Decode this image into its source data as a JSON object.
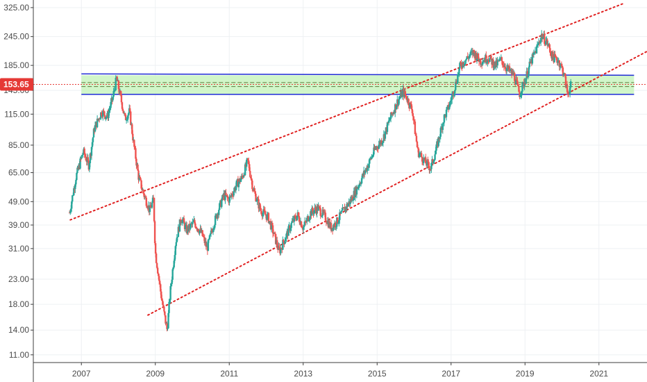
{
  "chart_data": {
    "type": "candlestick",
    "scale": "log",
    "ylim": [
      10.2,
      350
    ],
    "xlim": [
      2005.7,
      2022.3
    ],
    "y_ticks": [
      "325.00",
      "245.00",
      "185.00",
      "145.00",
      "115.00",
      "85.00",
      "65.00",
      "49.00",
      "39.00",
      "31.00",
      "23.00",
      "18.00",
      "14.00",
      "11.00"
    ],
    "x_ticks": [
      "2007",
      "2009",
      "2011",
      "2013",
      "2015",
      "2017",
      "2019",
      "2021"
    ],
    "current_price": {
      "label": "153.65",
      "value": 153.65,
      "color": "#e53935"
    },
    "colors": {
      "up": "#26a69a",
      "down": "#ef5350",
      "grid": "#eef0f3",
      "axis": "#3c3c3c",
      "zone_fill": "#c9f5c0",
      "zone_edge": "#1f2bd6",
      "trend": "#e02020"
    },
    "zone": {
      "low": 139.5,
      "high": 168
    },
    "zone_mid_lines": [
      150.5,
      156.5
    ],
    "trendlines": [
      {
        "name": "upper-channel",
        "points": [
          [
            2006.7,
            41
          ],
          [
            2021.7,
            340
          ]
        ]
      },
      {
        "name": "lower-channel",
        "points": [
          [
            2008.8,
            16.2
          ],
          [
            2022.3,
            212
          ]
        ]
      }
    ],
    "price_path": [
      [
        2006.68,
        44
      ],
      [
        2006.85,
        62
      ],
      [
        2007.05,
        80
      ],
      [
        2007.2,
        70
      ],
      [
        2007.35,
        100
      ],
      [
        2007.55,
        118
      ],
      [
        2007.7,
        112
      ],
      [
        2007.85,
        135
      ],
      [
        2007.95,
        163
      ],
      [
        2008.05,
        138
      ],
      [
        2008.18,
        110
      ],
      [
        2008.3,
        118
      ],
      [
        2008.42,
        85
      ],
      [
        2008.55,
        62
      ],
      [
        2008.7,
        52
      ],
      [
        2008.85,
        45
      ],
      [
        2008.95,
        50
      ],
      [
        2009.0,
        30
      ],
      [
        2009.15,
        20
      ],
      [
        2009.25,
        16
      ],
      [
        2009.32,
        14
      ],
      [
        2009.4,
        20
      ],
      [
        2009.55,
        33
      ],
      [
        2009.7,
        42
      ],
      [
        2009.85,
        37
      ],
      [
        2010.05,
        40
      ],
      [
        2010.25,
        36
      ],
      [
        2010.4,
        31
      ],
      [
        2010.55,
        38
      ],
      [
        2010.7,
        45
      ],
      [
        2010.85,
        52
      ],
      [
        2011.0,
        50
      ],
      [
        2011.2,
        58
      ],
      [
        2011.35,
        62
      ],
      [
        2011.5,
        73
      ],
      [
        2011.65,
        55
      ],
      [
        2011.85,
        45
      ],
      [
        2012.05,
        42
      ],
      [
        2012.2,
        36
      ],
      [
        2012.35,
        30
      ],
      [
        2012.5,
        34
      ],
      [
        2012.7,
        40
      ],
      [
        2012.85,
        43
      ],
      [
        2013.0,
        38
      ],
      [
        2013.2,
        44
      ],
      [
        2013.4,
        46
      ],
      [
        2013.6,
        42
      ],
      [
        2013.75,
        38
      ],
      [
        2013.9,
        40
      ],
      [
        2014.05,
        44
      ],
      [
        2014.3,
        50
      ],
      [
        2014.55,
        60
      ],
      [
        2014.75,
        70
      ],
      [
        2014.95,
        82
      ],
      [
        2015.15,
        90
      ],
      [
        2015.35,
        110
      ],
      [
        2015.55,
        130
      ],
      [
        2015.7,
        143
      ],
      [
        2015.8,
        135
      ],
      [
        2015.95,
        120
      ],
      [
        2016.1,
        80
      ],
      [
        2016.3,
        72
      ],
      [
        2016.45,
        68
      ],
      [
        2016.6,
        82
      ],
      [
        2016.8,
        110
      ],
      [
        2016.95,
        125
      ],
      [
        2017.1,
        150
      ],
      [
        2017.25,
        185
      ],
      [
        2017.45,
        200
      ],
      [
        2017.6,
        210
      ],
      [
        2017.8,
        193
      ],
      [
        2018.0,
        200
      ],
      [
        2018.2,
        185
      ],
      [
        2018.35,
        195
      ],
      [
        2018.5,
        180
      ],
      [
        2018.7,
        168
      ],
      [
        2018.85,
        140
      ],
      [
        2019.0,
        160
      ],
      [
        2019.15,
        190
      ],
      [
        2019.3,
        215
      ],
      [
        2019.45,
        248
      ],
      [
        2019.6,
        230
      ],
      [
        2019.75,
        200
      ],
      [
        2019.9,
        195
      ],
      [
        2020.05,
        172
      ],
      [
        2020.15,
        140
      ],
      [
        2020.25,
        153.65
      ]
    ]
  }
}
